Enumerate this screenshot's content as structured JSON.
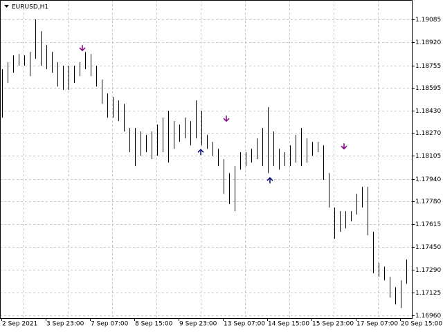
{
  "chart_data": {
    "type": "hlc-bars",
    "title": "EURUSD,H1",
    "color": "#000000",
    "high": [
      1.18728,
      1.18778,
      1.18827,
      1.18837,
      1.18827,
      1.18852,
      1.19086,
      1.19001,
      1.18902,
      1.18852,
      1.18778,
      1.18753,
      1.18753,
      1.18753,
      1.18778,
      1.18852,
      1.18837,
      1.18753,
      1.18653,
      1.18554,
      1.18529,
      1.18504,
      1.18479,
      1.18306,
      1.18306,
      1.18281,
      1.18256,
      1.18281,
      1.1833,
      1.1838,
      1.1843,
      1.18355,
      1.1833,
      1.1838,
      1.18355,
      1.18504,
      1.1843,
      1.18256,
      1.18206,
      1.18156,
      1.18082,
      1.17982,
      1.18032,
      1.18132,
      1.18132,
      1.18156,
      1.18231,
      1.18306,
      1.18455,
      1.18281,
      1.18156,
      1.18132,
      1.18181,
      1.18256,
      1.18306,
      1.18231,
      1.18206,
      1.18206,
      1.18181,
      1.17982,
      1.17734,
      1.17709,
      1.17709,
      1.17709,
      1.17833,
      1.17883,
      1.17883,
      1.1756,
      1.17336,
      1.1731,
      1.17237,
      1.17162,
      1.17212,
      1.17361,
      1.17262
    ],
    "low": [
      1.1838,
      1.18629,
      1.18703,
      1.18753,
      1.18753,
      1.18678,
      1.18803,
      1.18753,
      1.18728,
      1.18703,
      1.18604,
      1.18579,
      1.18579,
      1.18629,
      1.18678,
      1.18728,
      1.18678,
      1.18604,
      1.18479,
      1.1838,
      1.1838,
      1.18355,
      1.18281,
      1.18132,
      1.18032,
      1.18107,
      1.18132,
      1.18082,
      1.18107,
      1.18132,
      1.18057,
      1.18156,
      1.18206,
      1.18231,
      1.18181,
      1.18231,
      1.18181,
      1.18156,
      1.18107,
      1.18032,
      1.17833,
      1.17759,
      1.17709,
      1.18007,
      1.18032,
      1.18057,
      1.18082,
      1.18032,
      1.17982,
      1.18032,
      1.18007,
      1.18032,
      1.18032,
      1.18057,
      1.18032,
      1.18057,
      1.18107,
      1.18132,
      1.17933,
      1.17734,
      1.1751,
      1.1756,
      1.17585,
      1.17635,
      1.17684,
      1.17734,
      1.17535,
      1.17262,
      1.17237,
      1.17212,
      1.17088,
      1.17038,
      1.17013,
      1.17187,
      1.17237
    ],
    "ylim": [
      1.1694,
      1.19225
    ],
    "yticks": [
      1.19085,
      {
        "value": 1.1892,
        "label": "1.18920"
      },
      1.18755,
      1.18595,
      {
        "value": 1.1843,
        "label": "1.18430"
      },
      {
        "value": 1.1827,
        "label": "1.18270"
      },
      1.18105,
      {
        "value": 1.1794,
        "label": "1.17940"
      },
      {
        "value": 1.1778,
        "label": "1.17780"
      },
      1.17615,
      {
        "value": 1.1745,
        "label": "1.17450"
      },
      {
        "value": 1.1729,
        "label": "1.17290"
      },
      1.17125,
      {
        "value": 1.1696,
        "label": "1.16960"
      }
    ],
    "x_labels": [
      "2 Sep 2021",
      "3 Sep 23:00",
      "7 Sep 07:00",
      "8 Sep 15:00",
      "9 Sep 23:00",
      "13 Sep 07:00",
      "14 Sep 15:00",
      "15 Sep 23:00",
      "17 Sep 07:00",
      "20 Sep 15:00"
    ],
    "sell_signals": {
      "color": "#800080",
      "prices": [
        1.18862,
        1.18355,
        1.18156
      ]
    },
    "buy_signals": {
      "color": "#000080",
      "prices": [
        1.18151,
        1.17948
      ]
    },
    "grid": true
  }
}
